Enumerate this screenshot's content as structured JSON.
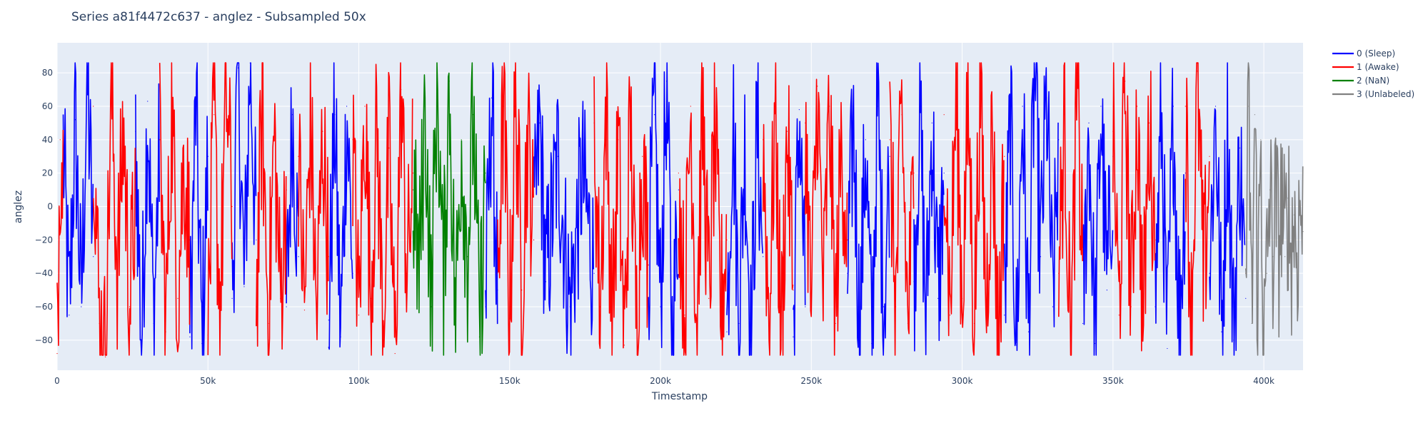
{
  "chart_data": {
    "type": "line",
    "title": "Series a81f4472c637 - anglez - Subsampled 50x",
    "xlabel": "Timestamp",
    "ylabel": "anglez",
    "xlim": [
      0,
      413000
    ],
    "ylim": [
      -98,
      98
    ],
    "x_ticks": [
      0,
      50000,
      100000,
      150000,
      200000,
      250000,
      300000,
      350000,
      400000
    ],
    "x_tick_labels": [
      "0",
      "50k",
      "100k",
      "150k",
      "200k",
      "250k",
      "300k",
      "350k",
      "400k"
    ],
    "y_ticks": [
      80,
      60,
      40,
      20,
      0,
      -20,
      -40,
      -60,
      -80
    ],
    "y_tick_labels": [
      "80",
      "60",
      "40",
      "20",
      "0",
      "−20",
      "−40",
      "−60",
      "−80"
    ],
    "grid": true,
    "legend_position": "top-right",
    "background": "#e5ecf6",
    "series": [
      {
        "name": "0 (Sleep)",
        "color": "#0000ff",
        "segments": [
          [
            2000,
            12000
          ],
          [
            26000,
            34000
          ],
          [
            44000,
            50000
          ],
          [
            58000,
            66000
          ],
          [
            76000,
            80000
          ],
          [
            90000,
            98000
          ],
          [
            142000,
            146000
          ],
          [
            158000,
            178000
          ],
          [
            196000,
            206000
          ],
          [
            222000,
            234000
          ],
          [
            244000,
            248000
          ],
          [
            262000,
            276000
          ],
          [
            284000,
            294000
          ],
          [
            314000,
            332000
          ],
          [
            340000,
            350000
          ],
          [
            364000,
            374000
          ],
          [
            382000,
            394000
          ]
        ],
        "points": [
          [
            2000,
            38
          ],
          [
            4000,
            -65
          ],
          [
            6000,
            52
          ],
          [
            8000,
            -60
          ],
          [
            10000,
            78
          ],
          [
            12000,
            -30
          ],
          [
            26000,
            45
          ],
          [
            28000,
            -82
          ],
          [
            30000,
            63
          ],
          [
            32000,
            -70
          ],
          [
            34000,
            40
          ],
          [
            44000,
            -78
          ],
          [
            46000,
            62
          ],
          [
            48000,
            -82
          ],
          [
            50000,
            30
          ],
          [
            58000,
            -55
          ],
          [
            60000,
            83
          ],
          [
            62000,
            -48
          ],
          [
            64000,
            86
          ],
          [
            66000,
            -20
          ],
          [
            76000,
            -60
          ],
          [
            78000,
            55
          ],
          [
            80000,
            -30
          ],
          [
            90000,
            -68
          ],
          [
            92000,
            55
          ],
          [
            94000,
            -78
          ],
          [
            96000,
            60
          ],
          [
            98000,
            -40
          ],
          [
            142000,
            -60
          ],
          [
            144000,
            65
          ],
          [
            146000,
            -50
          ],
          [
            158000,
            -20
          ],
          [
            160000,
            50
          ],
          [
            162000,
            -45
          ],
          [
            166000,
            30
          ],
          [
            170000,
            -60
          ],
          [
            174000,
            20
          ],
          [
            178000,
            -40
          ],
          [
            196000,
            -35
          ],
          [
            198000,
            55
          ],
          [
            200000,
            -60
          ],
          [
            202000,
            75
          ],
          [
            204000,
            -85
          ],
          [
            206000,
            10
          ],
          [
            222000,
            -75
          ],
          [
            224000,
            60
          ],
          [
            226000,
            -70
          ],
          [
            228000,
            40
          ],
          [
            230000,
            -84
          ],
          [
            232000,
            50
          ],
          [
            234000,
            -30
          ],
          [
            244000,
            -78
          ],
          [
            246000,
            58
          ],
          [
            248000,
            -60
          ],
          [
            262000,
            -40
          ],
          [
            264000,
            50
          ],
          [
            266000,
            -75
          ],
          [
            268000,
            40
          ],
          [
            270000,
            -82
          ],
          [
            272000,
            60
          ],
          [
            274000,
            -60
          ],
          [
            276000,
            30
          ],
          [
            284000,
            -45
          ],
          [
            286000,
            60
          ],
          [
            288000,
            -70
          ],
          [
            290000,
            50
          ],
          [
            292000,
            -55
          ],
          [
            294000,
            20
          ],
          [
            314000,
            -65
          ],
          [
            316000,
            55
          ],
          [
            318000,
            -83
          ],
          [
            320000,
            60
          ],
          [
            322000,
            -75
          ],
          [
            324000,
            85
          ],
          [
            326000,
            -30
          ],
          [
            328000,
            65
          ],
          [
            330000,
            -60
          ],
          [
            332000,
            40
          ],
          [
            340000,
            -70
          ],
          [
            342000,
            50
          ],
          [
            344000,
            -82
          ],
          [
            346000,
            60
          ],
          [
            348000,
            -50
          ],
          [
            350000,
            30
          ],
          [
            364000,
            -60
          ],
          [
            366000,
            55
          ],
          [
            368000,
            -85
          ],
          [
            370000,
            60
          ],
          [
            372000,
            -70
          ],
          [
            374000,
            20
          ],
          [
            382000,
            -40
          ],
          [
            384000,
            60
          ],
          [
            386000,
            -75
          ],
          [
            388000,
            55
          ],
          [
            390000,
            -80
          ],
          [
            392000,
            35
          ],
          [
            394000,
            -55
          ]
        ]
      },
      {
        "name": "1 (Awake)",
        "color": "#ff0000",
        "segments": [
          [
            0,
            2000
          ],
          [
            12000,
            26000
          ],
          [
            34000,
            44000
          ],
          [
            50000,
            58000
          ],
          [
            66000,
            76000
          ],
          [
            80000,
            90000
          ],
          [
            98000,
            118000
          ],
          [
            146000,
            158000
          ],
          [
            178000,
            196000
          ],
          [
            206000,
            222000
          ],
          [
            234000,
            244000
          ],
          [
            248000,
            262000
          ],
          [
            276000,
            284000
          ],
          [
            294000,
            314000
          ],
          [
            332000,
            340000
          ],
          [
            350000,
            364000
          ],
          [
            374000,
            382000
          ],
          [
            394000,
            394000
          ]
        ],
        "points": [
          [
            0,
            -88
          ],
          [
            1000,
            40
          ],
          [
            2000,
            20
          ],
          [
            12000,
            60
          ],
          [
            14000,
            -70
          ],
          [
            16000,
            -90
          ],
          [
            18000,
            72
          ],
          [
            20000,
            -40
          ],
          [
            22000,
            50
          ],
          [
            24000,
            -60
          ],
          [
            26000,
            10
          ],
          [
            34000,
            40
          ],
          [
            36000,
            -75
          ],
          [
            38000,
            60
          ],
          [
            40000,
            -55
          ],
          [
            42000,
            30
          ],
          [
            44000,
            -20
          ],
          [
            50000,
            -77
          ],
          [
            52000,
            55
          ],
          [
            54000,
            -65
          ],
          [
            56000,
            70
          ],
          [
            58000,
            0
          ],
          [
            66000,
            -60
          ],
          [
            68000,
            60
          ],
          [
            70000,
            -70
          ],
          [
            72000,
            45
          ],
          [
            74000,
            -55
          ],
          [
            76000,
            10
          ],
          [
            80000,
            30
          ],
          [
            82000,
            -62
          ],
          [
            84000,
            55
          ],
          [
            86000,
            -70
          ],
          [
            88000,
            45
          ],
          [
            90000,
            -30
          ],
          [
            98000,
            40
          ],
          [
            100000,
            -65
          ],
          [
            102000,
            60
          ],
          [
            104000,
            -55
          ],
          [
            106000,
            50
          ],
          [
            108000,
            -72
          ],
          [
            110000,
            35
          ],
          [
            112000,
            -88
          ],
          [
            114000,
            70
          ],
          [
            116000,
            -40
          ],
          [
            118000,
            20
          ],
          [
            146000,
            -40
          ],
          [
            148000,
            60
          ],
          [
            150000,
            -65
          ],
          [
            152000,
            70
          ],
          [
            154000,
            -50
          ],
          [
            156000,
            45
          ],
          [
            158000,
            -20
          ],
          [
            178000,
            50
          ],
          [
            180000,
            -60
          ],
          [
            182000,
            65
          ],
          [
            184000,
            -75
          ],
          [
            186000,
            40
          ],
          [
            188000,
            -83
          ],
          [
            190000,
            55
          ],
          [
            192000,
            -70
          ],
          [
            194000,
            30
          ],
          [
            196000,
            -35
          ],
          [
            206000,
            20
          ],
          [
            208000,
            -65
          ],
          [
            210000,
            60
          ],
          [
            212000,
            -70
          ],
          [
            214000,
            55
          ],
          [
            216000,
            -55
          ],
          [
            218000,
            45
          ],
          [
            220000,
            -60
          ],
          [
            222000,
            -20
          ],
          [
            234000,
            40
          ],
          [
            236000,
            -70
          ],
          [
            238000,
            60
          ],
          [
            240000,
            -80
          ],
          [
            242000,
            45
          ],
          [
            244000,
            -50
          ],
          [
            248000,
            50
          ],
          [
            250000,
            -65
          ],
          [
            252000,
            72
          ],
          [
            254000,
            -55
          ],
          [
            256000,
            60
          ],
          [
            258000,
            -70
          ],
          [
            260000,
            40
          ],
          [
            262000,
            -20
          ],
          [
            276000,
            40
          ],
          [
            278000,
            -60
          ],
          [
            280000,
            55
          ],
          [
            282000,
            -70
          ],
          [
            284000,
            20
          ],
          [
            294000,
            55
          ],
          [
            296000,
            -65
          ],
          [
            298000,
            70
          ],
          [
            300000,
            -55
          ],
          [
            302000,
            60
          ],
          [
            304000,
            -70
          ],
          [
            306000,
            75
          ],
          [
            308000,
            -60
          ],
          [
            310000,
            50
          ],
          [
            312000,
            -83
          ],
          [
            314000,
            30
          ],
          [
            332000,
            -40
          ],
          [
            334000,
            55
          ],
          [
            336000,
            -89
          ],
          [
            338000,
            65
          ],
          [
            340000,
            -30
          ],
          [
            350000,
            45
          ],
          [
            352000,
            -65
          ],
          [
            354000,
            75
          ],
          [
            356000,
            -60
          ],
          [
            358000,
            60
          ],
          [
            360000,
            -72
          ],
          [
            362000,
            50
          ],
          [
            364000,
            -20
          ],
          [
            374000,
            60
          ],
          [
            376000,
            -70
          ],
          [
            378000,
            81
          ],
          [
            380000,
            -50
          ],
          [
            382000,
            30
          ],
          [
            394000,
            -40
          ]
        ]
      },
      {
        "name": "2 (NaN)",
        "color": "#008000",
        "segments": [
          [
            118000,
            142000
          ]
        ],
        "points": [
          [
            118000,
            10
          ],
          [
            120000,
            -40
          ],
          [
            122000,
            60
          ],
          [
            124000,
            -60
          ],
          [
            126000,
            80
          ],
          [
            128000,
            -50
          ],
          [
            130000,
            75
          ],
          [
            132000,
            -68
          ],
          [
            134000,
            40
          ],
          [
            136000,
            -30
          ],
          [
            138000,
            55
          ],
          [
            140000,
            -78
          ],
          [
            142000,
            20
          ]
        ]
      },
      {
        "name": "3 (Unlabeled)",
        "color": "#808080",
        "segments": [
          [
            394000,
            413000
          ]
        ],
        "points": [
          [
            394000,
            -40
          ],
          [
            395000,
            60
          ],
          [
            396000,
            -70
          ],
          [
            397000,
            55
          ],
          [
            398000,
            -60
          ],
          [
            399000,
            40
          ],
          [
            400000,
            -88
          ],
          [
            401000,
            -40
          ],
          [
            402000,
            10
          ],
          [
            403000,
            -30
          ],
          [
            404000,
            5
          ],
          [
            405000,
            -25
          ],
          [
            406000,
            8
          ],
          [
            407000,
            -30
          ],
          [
            408000,
            5
          ],
          [
            409000,
            -28
          ],
          [
            410000,
            -5
          ],
          [
            411000,
            -30
          ],
          [
            412000,
            3
          ],
          [
            413000,
            -15
          ]
        ]
      }
    ]
  }
}
